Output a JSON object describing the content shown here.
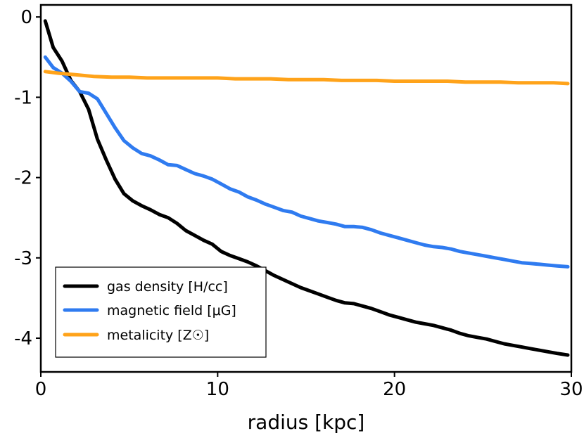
{
  "chart_data": {
    "type": "line",
    "title": "",
    "xlabel": "radius [kpc]",
    "ylabel": "",
    "xlim": [
      0,
      30
    ],
    "ylim": [
      -4.42,
      0.15
    ],
    "xticks": [
      0,
      10,
      20,
      30
    ],
    "xtick_labels": [
      "0",
      "10",
      "20",
      "30"
    ],
    "yticks": [
      0,
      -1,
      -2,
      -3,
      -4
    ],
    "ytick_labels": [
      "0",
      "-1",
      "-2",
      "-3",
      "-4"
    ],
    "grid": false,
    "legend_position": "bottom-left",
    "series": [
      {
        "name": "gas density [H/cc]",
        "color": "#000000",
        "x": [
          0.25,
          0.7,
          1.2,
          1.7,
          2.2,
          2.7,
          3.2,
          3.7,
          4.2,
          4.7,
          5.2,
          5.7,
          6.2,
          6.7,
          7.2,
          7.7,
          8.2,
          8.7,
          9.2,
          9.7,
          10.2,
          10.7,
          11.2,
          11.7,
          12.2,
          12.7,
          13.2,
          13.7,
          14.2,
          14.7,
          15.2,
          15.7,
          16.2,
          16.7,
          17.2,
          17.7,
          18.2,
          18.7,
          19.2,
          19.7,
          20.2,
          20.7,
          21.2,
          21.7,
          22.2,
          22.7,
          23.2,
          23.7,
          24.2,
          24.7,
          25.2,
          25.7,
          26.2,
          26.7,
          27.2,
          27.7,
          28.2,
          28.7,
          29.2,
          29.8
        ],
        "values": [
          -0.05,
          -0.38,
          -0.55,
          -0.79,
          -0.93,
          -1.15,
          -1.52,
          -1.78,
          -2.02,
          -2.2,
          -2.29,
          -2.35,
          -2.4,
          -2.46,
          -2.5,
          -2.57,
          -2.66,
          -2.72,
          -2.78,
          -2.83,
          -2.92,
          -2.97,
          -3.01,
          -3.05,
          -3.1,
          -3.16,
          -3.22,
          -3.27,
          -3.32,
          -3.37,
          -3.41,
          -3.45,
          -3.49,
          -3.53,
          -3.56,
          -3.57,
          -3.6,
          -3.63,
          -3.67,
          -3.71,
          -3.74,
          -3.77,
          -3.8,
          -3.82,
          -3.84,
          -3.87,
          -3.9,
          -3.94,
          -3.97,
          -3.99,
          -4.01,
          -4.04,
          -4.07,
          -4.09,
          -4.11,
          -4.13,
          -4.15,
          -4.17,
          -4.19,
          -4.21
        ]
      },
      {
        "name": "magnetic field [μG]",
        "color": "#2f7bf0",
        "x": [
          0.25,
          0.7,
          1.2,
          1.7,
          2.2,
          2.7,
          3.2,
          3.7,
          4.2,
          4.7,
          5.2,
          5.7,
          6.2,
          6.7,
          7.2,
          7.7,
          8.2,
          8.7,
          9.2,
          9.7,
          10.2,
          10.7,
          11.2,
          11.7,
          12.2,
          12.7,
          13.2,
          13.7,
          14.2,
          14.7,
          15.2,
          15.7,
          16.2,
          16.7,
          17.2,
          17.7,
          18.2,
          18.7,
          19.2,
          19.7,
          20.2,
          20.7,
          21.2,
          21.7,
          22.2,
          22.7,
          23.2,
          23.7,
          24.2,
          24.7,
          25.2,
          25.7,
          26.2,
          26.7,
          27.2,
          27.7,
          28.2,
          28.7,
          29.2,
          29.8
        ],
        "values": [
          -0.5,
          -0.63,
          -0.7,
          -0.8,
          -0.93,
          -0.95,
          -1.02,
          -1.2,
          -1.38,
          -1.54,
          -1.63,
          -1.7,
          -1.73,
          -1.78,
          -1.84,
          -1.85,
          -1.9,
          -1.95,
          -1.98,
          -2.02,
          -2.08,
          -2.14,
          -2.18,
          -2.24,
          -2.28,
          -2.33,
          -2.37,
          -2.41,
          -2.43,
          -2.48,
          -2.51,
          -2.54,
          -2.56,
          -2.58,
          -2.61,
          -2.61,
          -2.62,
          -2.65,
          -2.69,
          -2.72,
          -2.75,
          -2.78,
          -2.81,
          -2.84,
          -2.86,
          -2.87,
          -2.89,
          -2.92,
          -2.94,
          -2.96,
          -2.98,
          -3.0,
          -3.02,
          -3.04,
          -3.06,
          -3.07,
          -3.08,
          -3.09,
          -3.1,
          -3.11
        ]
      },
      {
        "name": "metalicity [Z☉]",
        "color": "#ffa31a",
        "x": [
          0.25,
          1.0,
          2.0,
          3.0,
          4.0,
          5.0,
          6.0,
          7.0,
          8.0,
          9.0,
          10.0,
          11.0,
          12.0,
          13.0,
          14.0,
          15.0,
          16.0,
          17.0,
          18.0,
          19.0,
          20.0,
          21.0,
          22.0,
          23.0,
          24.0,
          25.0,
          26.0,
          27.0,
          28.0,
          29.0,
          29.8
        ],
        "values": [
          -0.68,
          -0.7,
          -0.72,
          -0.74,
          -0.75,
          -0.75,
          -0.76,
          -0.76,
          -0.76,
          -0.76,
          -0.76,
          -0.77,
          -0.77,
          -0.77,
          -0.78,
          -0.78,
          -0.78,
          -0.79,
          -0.79,
          -0.79,
          -0.8,
          -0.8,
          -0.8,
          -0.8,
          -0.81,
          -0.81,
          -0.81,
          -0.82,
          -0.82,
          -0.82,
          -0.83
        ]
      }
    ]
  }
}
